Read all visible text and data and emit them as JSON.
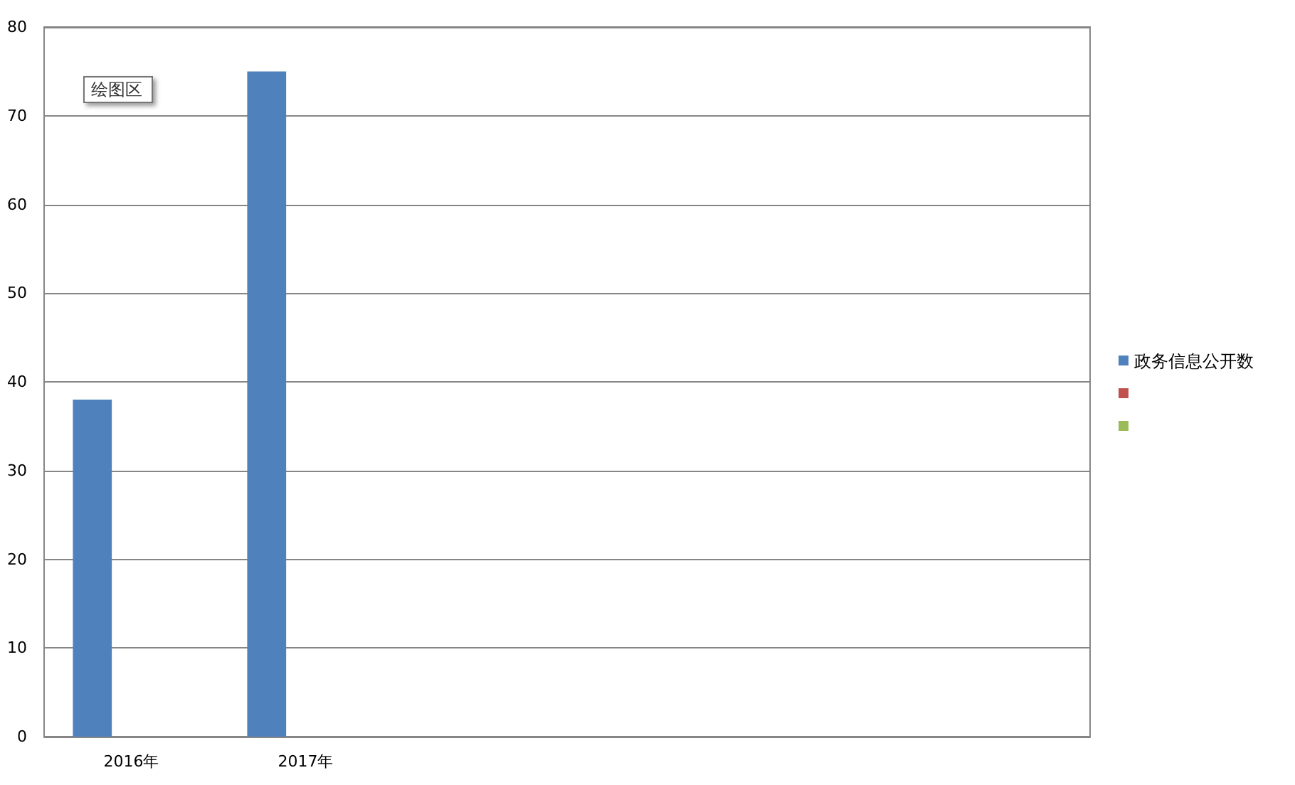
{
  "chart_data": {
    "type": "bar",
    "categories": [
      "2016年",
      "2017年",
      null,
      null,
      null,
      null
    ],
    "series": [
      {
        "name": "政务信息公开数",
        "color": "#4f81bd",
        "values": [
          38,
          75,
          null,
          null,
          null,
          null
        ]
      },
      {
        "color": "#c0504d",
        "values": [
          null,
          null,
          null,
          null,
          null,
          null
        ]
      },
      {
        "color": "#9bbb59",
        "values": [
          null,
          null,
          null,
          null,
          null,
          null
        ]
      }
    ],
    "ylim": [
      0,
      80
    ],
    "yticks": [
      0,
      10,
      20,
      30,
      40,
      50,
      60,
      70,
      80
    ],
    "grid": "y",
    "legend": "right",
    "annotations": [
      "绘图区"
    ]
  }
}
